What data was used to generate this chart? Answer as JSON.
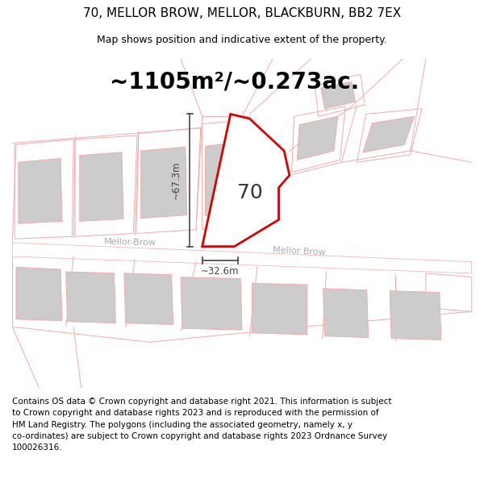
{
  "title_line1": "70, MELLOR BROW, MELLOR, BLACKBURN, BB2 7EX",
  "title_line2": "Map shows position and indicative extent of the property.",
  "area_label": "~1105m²/~0.273ac.",
  "property_number": "70",
  "dim_vertical": "~67.3m",
  "dim_horizontal": "~32.6m",
  "road_label_left": "Mellor-Brow",
  "road_label_right": "Mellor Brow",
  "footer_lines": [
    "Contains OS data © Crown copyright and database right 2021. This information is subject",
    "to Crown copyright and database rights 2023 and is reproduced with the permission of",
    "HM Land Registry. The polygons (including the associated geometry, namely x, y",
    "co-ordinates) are subject to Crown copyright and database rights 2023 Ordnance Survey",
    "100026316."
  ],
  "bg_color": "#ffffff",
  "property_edge": "#dd0000",
  "light_red": "#f5aaaa",
  "light_gray": "#cccccc",
  "dim_color": "#444444",
  "road_text_color": "#aaaaaa",
  "text_color": "#000000",
  "title_fontsize": 11,
  "subtitle_fontsize": 9,
  "area_fontsize": 20,
  "number_fontsize": 18,
  "dim_fontsize": 8.5,
  "road_fontsize": 8,
  "footer_fontsize": 7.5
}
